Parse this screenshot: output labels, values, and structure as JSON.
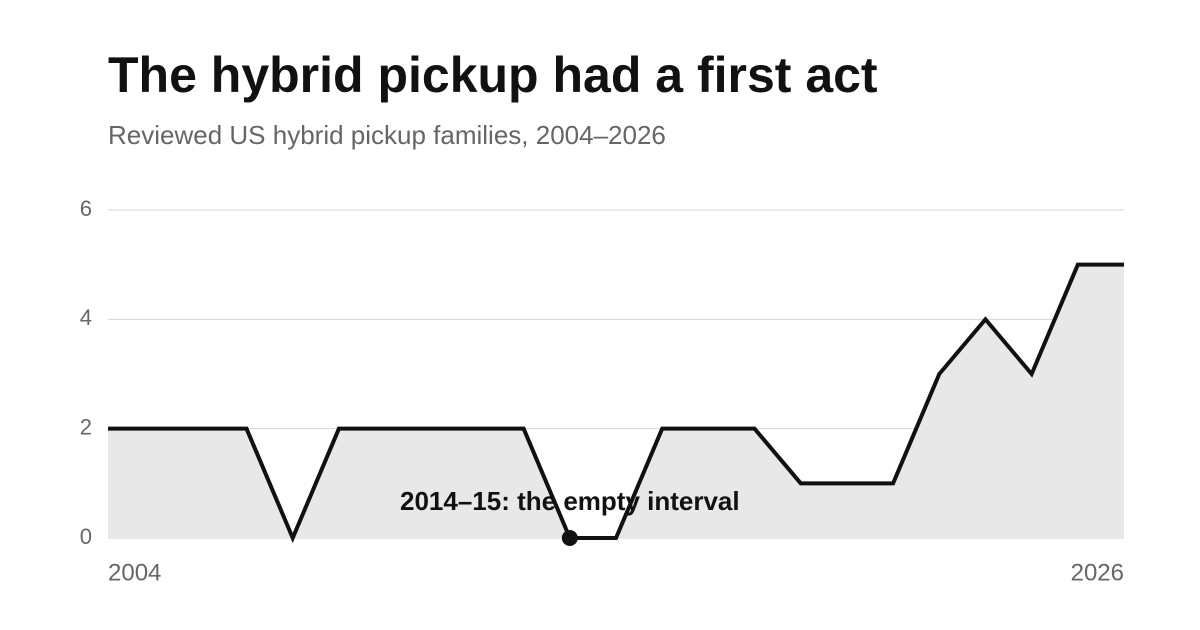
{
  "chart_data": {
    "type": "area",
    "title": "The hybrid pickup had a first act",
    "subtitle": "Reviewed US hybrid pickup families, 2004–2026",
    "x": [
      2004,
      2005,
      2006,
      2007,
      2008,
      2009,
      2010,
      2011,
      2012,
      2013,
      2014,
      2015,
      2016,
      2017,
      2018,
      2019,
      2020,
      2021,
      2022,
      2023,
      2024,
      2025,
      2026
    ],
    "series": [
      {
        "color": "#111111",
        "values": [
          2,
          2,
          2,
          2,
          0,
          2,
          2,
          2,
          2,
          2,
          0,
          0,
          2,
          2,
          2,
          1,
          1,
          1,
          3,
          4,
          3,
          5,
          5
        ]
      }
    ],
    "area_color": "#e8e8e8",
    "xlim": [
      2004,
      2026
    ],
    "xticks": [
      2004,
      2026
    ],
    "ylim": [
      0,
      6
    ],
    "yticks": [
      0,
      2,
      4,
      6
    ],
    "grid": true,
    "annotation": {
      "label": "2014–15: the empty interval",
      "x": 2014,
      "y": 0
    }
  }
}
